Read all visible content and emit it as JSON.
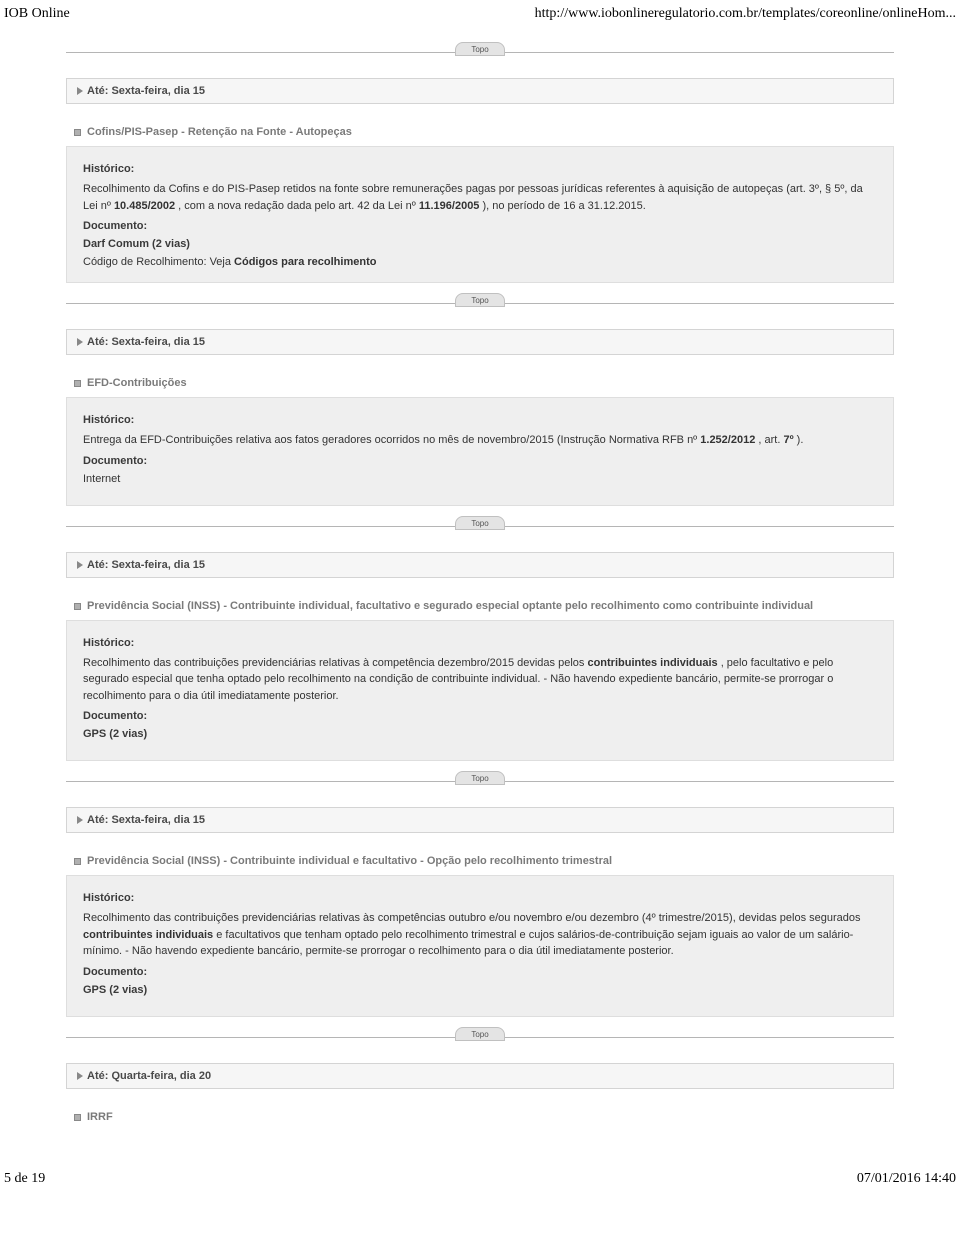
{
  "header": {
    "left": "IOB Online",
    "right": "http://www.iobonlineregulatorio.com.br/templates/coreonline/onlineHom..."
  },
  "topo_label": "Topo",
  "blocks": [
    {
      "deadline": "Até: Sexta-feira, dia 15",
      "title": "Cofins/PIS-Pasep - Retenção na Fonte - Autopeças",
      "historico_label": "Histórico:",
      "historico_pre": "Recolhimento da Cofins e do PIS-Pasep retidos na fonte sobre remunerações pagas por pessoas jurídicas referentes à aquisição de autopeças (art. 3º, § 5º, da Lei nº ",
      "historico_b1": "10.485/2002",
      "historico_mid": " , com a nova redação dada pelo art. 42 da Lei nº ",
      "historico_b2": "11.196/2005",
      "historico_post": " ), no período de 16 a 31.12.2015.",
      "documento_label": "Documento:",
      "documento_value": "Darf Comum (2 vias)",
      "doc_bold": true,
      "codigo_pre": "Código de Recolhimento: Veja ",
      "codigo_b": "Códigos para recolhimento"
    },
    {
      "deadline": "Até: Sexta-feira, dia 15",
      "title": "EFD-Contribuições",
      "historico_label": "Histórico:",
      "historico_pre": "Entrega da EFD-Contribuições relativa aos fatos geradores ocorridos no mês de novembro/2015 (Instrução Normativa RFB nº ",
      "historico_b1": "1.252/2012",
      "historico_mid": " , art. ",
      "historico_b2": "7º",
      "historico_post": " ).",
      "documento_label": "Documento:",
      "documento_value": "Internet",
      "doc_bold": false
    },
    {
      "deadline": "Até: Sexta-feira, dia 15",
      "title": "Previdência Social (INSS) - Contribuinte individual, facultativo e segurado especial optante pelo recolhimento como contribuinte individual",
      "historico_label": "Histórico:",
      "historico_pre": "Recolhimento das contribuições previdenciárias relativas à competência dezembro/2015 devidas pelos ",
      "historico_b1": "contribuintes individuais",
      "historico_mid": " , pelo facultativo e pelo segurado especial que tenha optado pelo recolhimento na condição de contribuinte individual. - Não havendo expediente bancário, permite-se prorrogar o recolhimento para o dia útil imediatamente posterior.",
      "historico_b2": "",
      "historico_post": "",
      "documento_label": "Documento:",
      "documento_value": "GPS (2 vias)",
      "doc_bold": true
    },
    {
      "deadline": "Até: Sexta-feira, dia 15",
      "title": "Previdência Social (INSS) - Contribuinte individual e facultativo - Opção pelo recolhimento trimestral",
      "historico_label": "Histórico:",
      "historico_pre": "Recolhimento das contribuições previdenciárias relativas às competências outubro e/ou novembro e/ou dezembro (4º trimestre/2015), devidas pelos segurados ",
      "historico_b1": "contribuintes individuais",
      "historico_mid": " e facultativos que tenham optado pelo recolhimento trimestral e cujos salários-de-contribuição sejam iguais ao valor de um salário-mínimo. - Não havendo expediente bancário, permite-se prorrogar o recolhimento para o dia útil imediatamente posterior.",
      "historico_b2": "",
      "historico_post": "",
      "documento_label": "Documento:",
      "documento_value": "GPS (2 vias)",
      "doc_bold": true
    },
    {
      "deadline": "Até: Quarta-feira, dia 20",
      "title": "IRRF",
      "no_detail": true
    }
  ],
  "footer": {
    "left": "5 de 19",
    "right": "07/01/2016 14:40"
  }
}
